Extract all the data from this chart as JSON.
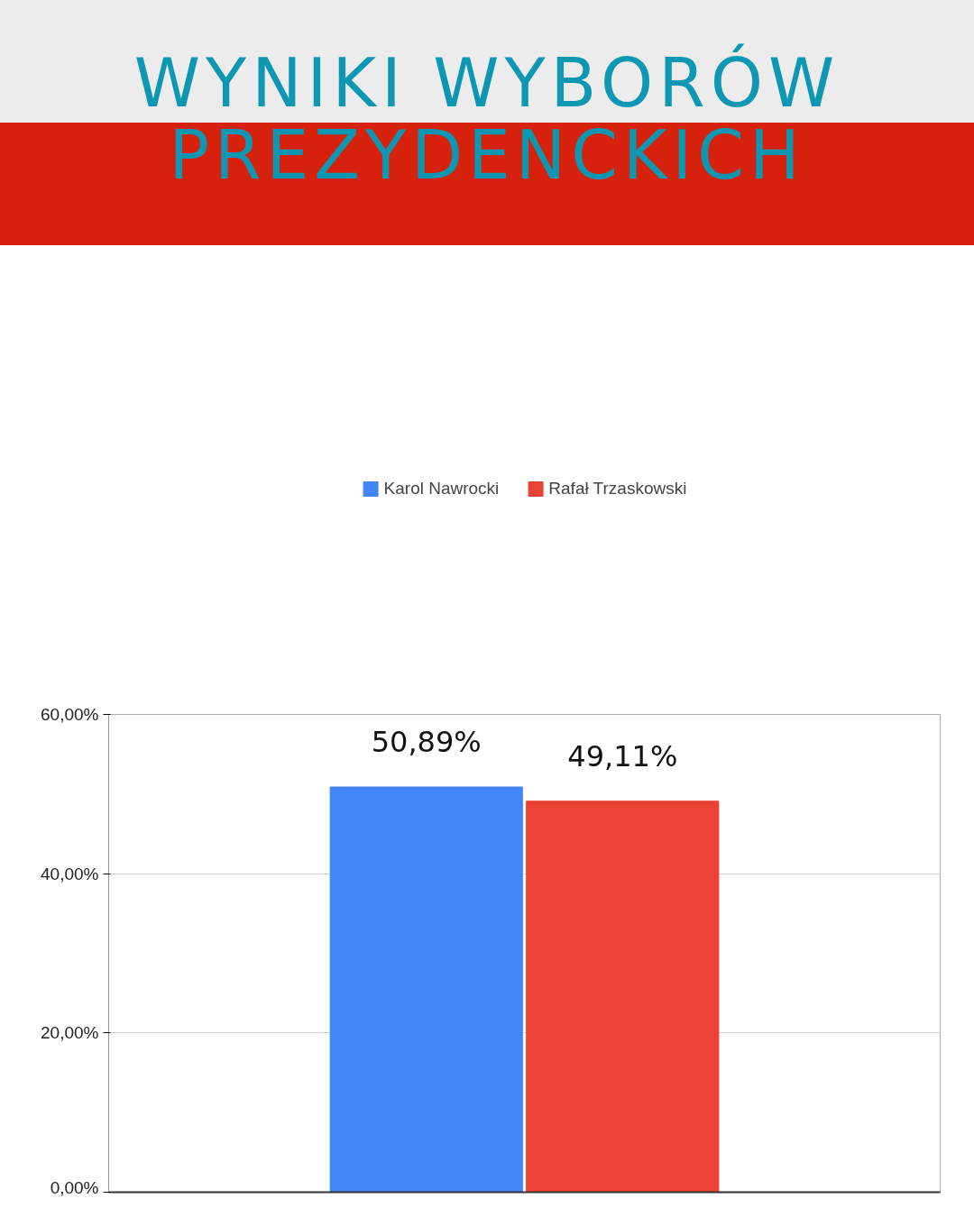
{
  "chart_data": {
    "type": "bar",
    "title": "WYNIKI WYBORÓW PREZYDENCKICH",
    "categories": [
      null
    ],
    "series": [
      {
        "name": "Karol Nawrocki",
        "color": "#4285f4",
        "values": [
          50.89
        ],
        "value_labels": [
          "50,89%"
        ]
      },
      {
        "name": "Rafał Trzaskowski",
        "color": "#ea4335",
        "values": [
          49.11
        ],
        "value_labels": [
          "49,11%"
        ]
      }
    ],
    "ylim": [
      0,
      60
    ],
    "yticks": [
      {
        "value": 0,
        "label": "0,00%"
      },
      {
        "value": 20,
        "label": "20,00%"
      },
      {
        "value": 40,
        "label": "40,00%"
      },
      {
        "value": 60,
        "label": "60,00%"
      }
    ],
    "grid": "y",
    "legend": "top",
    "tick_labels": "y"
  }
}
